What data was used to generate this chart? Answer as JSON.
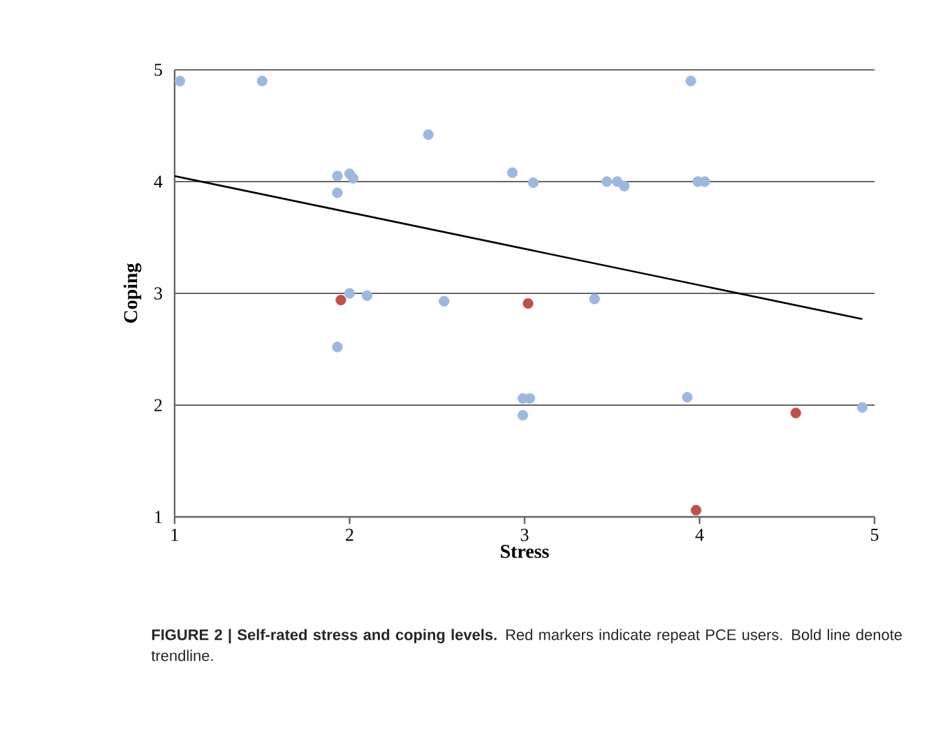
{
  "chart_data": {
    "type": "scatter",
    "xlabel": "Stress",
    "ylabel": "Coping",
    "xlim": [
      1,
      5
    ],
    "ylim": [
      1,
      5
    ],
    "xticks": [
      1,
      2,
      3,
      4,
      5
    ],
    "yticks": [
      1,
      2,
      3,
      4,
      5
    ],
    "grid": "y",
    "series": [
      {
        "color": "#9db8e0",
        "marker": "circle",
        "x": [
          1.03,
          1.5,
          2.45,
          1.93,
          2.0,
          2.02,
          1.93,
          2.93,
          3.05,
          3.47,
          3.53,
          3.57,
          3.95,
          3.99,
          4.03,
          2.0,
          2.1,
          2.54,
          3.4,
          1.93,
          2.99,
          3.03,
          2.99,
          3.93,
          4.93
        ],
        "values": [
          4.9,
          4.9,
          4.42,
          4.05,
          4.07,
          4.03,
          3.9,
          4.08,
          3.99,
          4.0,
          4.0,
          3.96,
          4.9,
          4.0,
          4.0,
          3.0,
          2.98,
          2.93,
          2.95,
          2.52,
          2.06,
          2.06,
          1.91,
          2.07,
          1.98
        ]
      },
      {
        "color": "#c0504d",
        "marker": "circle",
        "x": [
          1.95,
          3.02,
          4.55,
          3.98
        ],
        "values": [
          2.94,
          2.91,
          1.93,
          1.06
        ]
      },
      {
        "type": "line",
        "color": "#000000",
        "marker": "none",
        "line_style": "solid",
        "x": [
          1,
          4.93
        ],
        "values": [
          4.05,
          2.77
        ]
      }
    ],
    "annotations": [
      "**FIGURE 2 | Self-rated stress and coping levels.** Red markers indicate repeat PCE users. Bold line denote trendline."
    ]
  }
}
